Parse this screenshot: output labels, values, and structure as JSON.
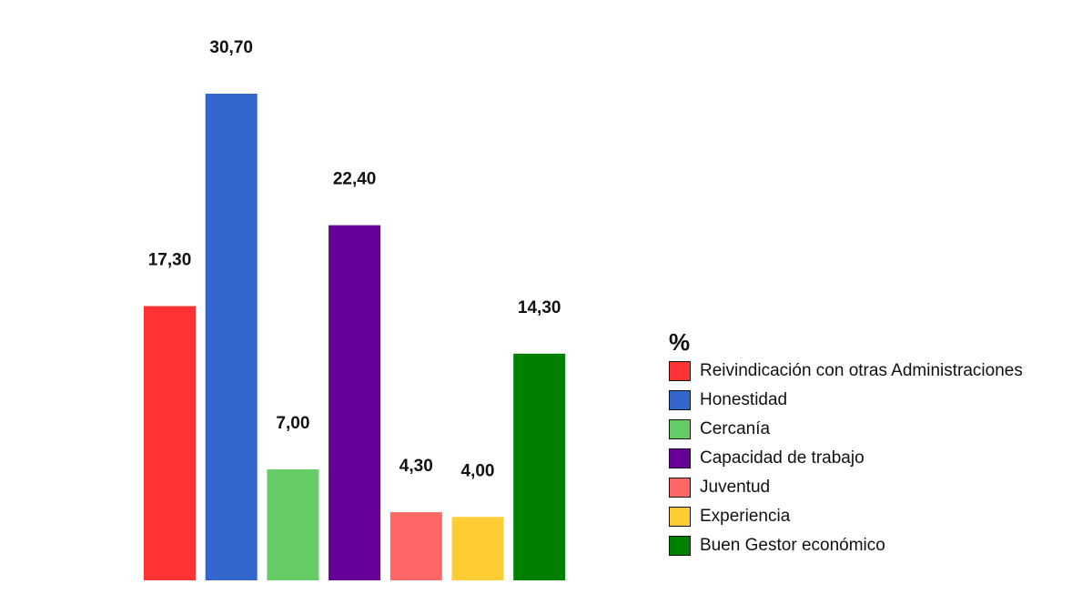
{
  "chart_data": {
    "type": "bar",
    "title": "",
    "xlabel": "",
    "ylabel": "",
    "ylim": [
      0,
      30.7
    ],
    "grid": false,
    "legend_title": "%",
    "legend_position": "right",
    "series": [
      {
        "name": "Reivindicación con otras Administraciones",
        "value": 17.3,
        "label": "17,30",
        "color": "#ff3333"
      },
      {
        "name": "Honestidad",
        "value": 30.7,
        "label": "30,70",
        "color": "#3366cc"
      },
      {
        "name": "Cercanía",
        "value": 7.0,
        "label": "7,00",
        "color": "#66cc66"
      },
      {
        "name": "Capacidad de trabajo",
        "value": 22.4,
        "label": "22,40",
        "color": "#660099"
      },
      {
        "name": "Juventud",
        "value": 4.3,
        "label": "4,30",
        "color": "#ff6666"
      },
      {
        "name": "Experiencia",
        "value": 4.0,
        "label": "4,00",
        "color": "#ffcc33"
      },
      {
        "name": "Buen Gestor económico",
        "value": 14.3,
        "label": "14,30",
        "color": "#008000"
      }
    ]
  }
}
